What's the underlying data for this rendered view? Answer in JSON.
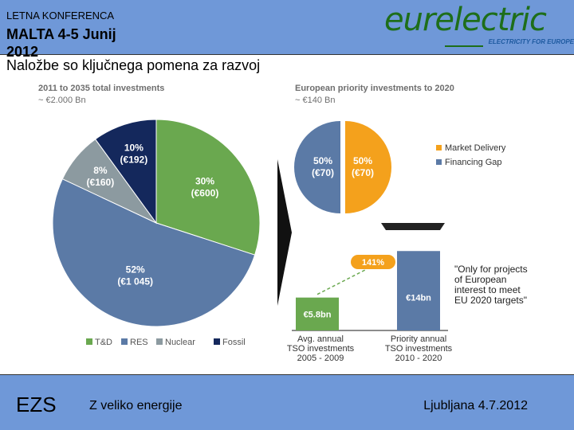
{
  "header": {
    "conference_label": "LETNA KONFERENCA",
    "conference_place": "MALTA 4-5 Junij 2012",
    "logo_text": "eurelectric",
    "logo_tagline": "ELECTRICITY FOR EUROPE"
  },
  "slide": {
    "title": "Naložbe so ključnega pomena za razvoj"
  },
  "colors": {
    "header_bg": "#6f98d8",
    "td_green": "#6aa84f",
    "res_blue": "#5b7aa6",
    "nuclear_gray": "#8c9aa0",
    "fossil_navy": "#14285c",
    "market_orange": "#f4a11c",
    "percent_pill": "#f4a11c",
    "heading_gray": "#6e6e6e"
  },
  "chart_data": [
    {
      "type": "pie",
      "title": "2011 to 2035 total investments",
      "subtitle": "~ €2.000 Bn",
      "slices": [
        {
          "name": "T&D",
          "percent": 30,
          "value_label": "(€600)",
          "color": "#6aa84f"
        },
        {
          "name": "RES",
          "percent": 52,
          "value_label": "(€1 045)",
          "color": "#5b7aa6"
        },
        {
          "name": "Nuclear",
          "percent": 8,
          "value_label": "(€160)",
          "color": "#8c9aa0"
        },
        {
          "name": "Fossil",
          "percent": 10,
          "value_label": "(€192)",
          "color": "#14285c"
        }
      ],
      "legend": [
        "T&D",
        "RES",
        "Nuclear",
        "Fossil"
      ],
      "legend_position": "bottom"
    },
    {
      "type": "pie",
      "title": "European priority investments to 2020",
      "subtitle": "~ €140 Bn",
      "slices": [
        {
          "name": "Financing Gap",
          "percent": 50,
          "value_label": "(€70)",
          "color": "#5b7aa6"
        },
        {
          "name": "Market Delivery",
          "percent": 50,
          "value_label": "(€70)",
          "color": "#f4a11c"
        }
      ],
      "legend": [
        "Market Delivery",
        "Financing Gap"
      ],
      "legend_position": "right"
    },
    {
      "type": "bar",
      "categories": [
        "Avg. annual TSO investments 2005 - 2009",
        "Priority annual TSO investments 2010 - 2020"
      ],
      "category_lines": [
        [
          "Avg. annual",
          "TSO investments",
          "2005 - 2009"
        ],
        [
          "Priority annual",
          "TSO investments",
          "2010 - 2020"
        ]
      ],
      "values": [
        5.8,
        14
      ],
      "value_labels": [
        "€5.8bn",
        "€14bn"
      ],
      "colors": [
        "#6aa84f",
        "#5b7aa6"
      ],
      "growth_label": "141%",
      "note_lines": [
        "\"Only for projects",
        "of European",
        "interest to meet",
        "EU 2020 targets\""
      ],
      "ylim": [
        0,
        16
      ]
    }
  ],
  "footer": {
    "left": "EZS",
    "middle": "Z veliko energije",
    "right": "Ljubljana 4.7.2012"
  }
}
